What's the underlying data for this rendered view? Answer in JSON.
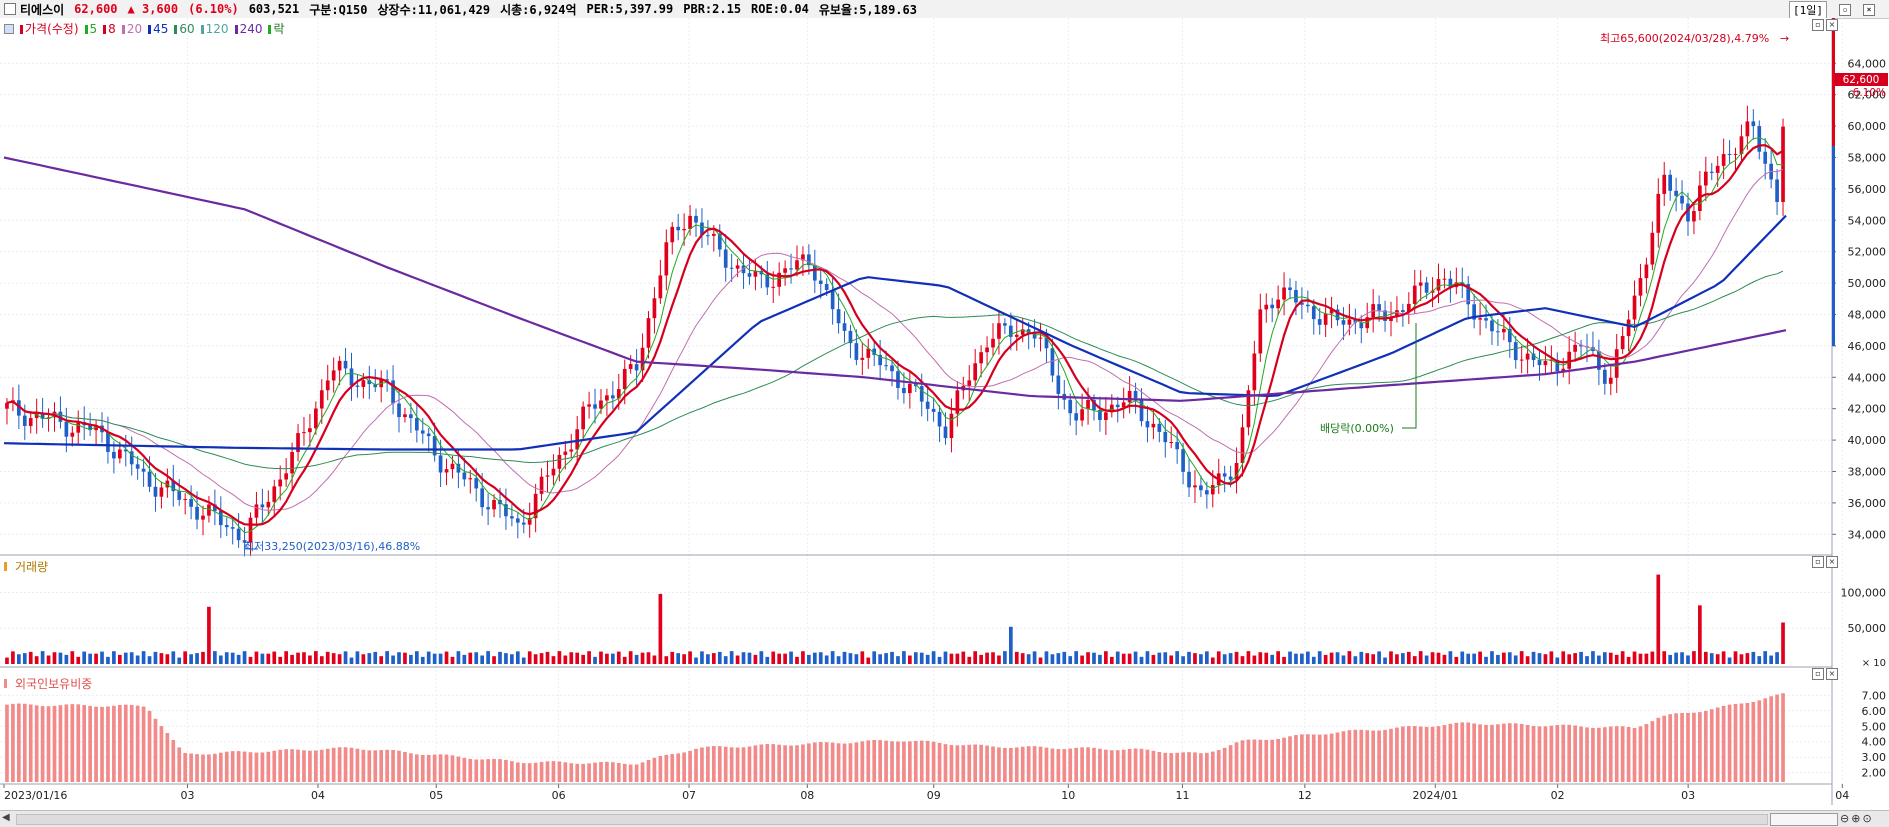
{
  "header": {
    "stock_name": "티에스이",
    "price": "62,600",
    "change": "▲ 3,600",
    "change_pct": "(6.10%)",
    "volume": "603,521",
    "market": "구분:Q150",
    "listed": "상장수:11,061,429",
    "mktcap": "시총:6,924억",
    "per": "PER:5,397.99",
    "pbr": "PBR:2.15",
    "roe": "ROE:0.04",
    "float": "유보율:5,189.63",
    "period": "[1일]"
  },
  "price_panel": {
    "legend": [
      {
        "label": "가격(수정)",
        "color": "#d5001e"
      },
      {
        "label": "5",
        "color": "#22aa22"
      },
      {
        "label": "8",
        "color": "#d5001e"
      },
      {
        "label": "20",
        "color": "#c06fb0"
      },
      {
        "label": "45",
        "color": "#1030b8"
      },
      {
        "label": "60",
        "color": "#2e8b57"
      },
      {
        "label": "120",
        "color": "#4ea8a0"
      },
      {
        "label": "240",
        "color": "#6a2aa0"
      },
      {
        "label": "락",
        "color": "#22aa22"
      }
    ],
    "y_ticks": [
      "64,000",
      "62,000",
      "60,000",
      "58,000",
      "56,000",
      "54,000",
      "52,000",
      "50,000",
      "48,000",
      "46,000",
      "44,000",
      "42,000",
      "40,000",
      "38,000",
      "36,000",
      "34,000"
    ],
    "current_price_tag": "62,600",
    "current_pct_tag": "6.10%",
    "high_annotation": "최고65,600(2024/03/28),4.79%",
    "low_annotation": "최저33,250(2023/03/16),46.88%",
    "dividend_annotation": "배당락(0.00%)"
  },
  "volume_panel": {
    "title": "거래량",
    "y_ticks": [
      "100,000",
      "50,000"
    ],
    "unit": "× 10"
  },
  "foreign_panel": {
    "title": "외국인보유비중",
    "y_ticks": [
      "7.00",
      "6.00",
      "5.00",
      "4.00",
      "3.00",
      "2.00"
    ]
  },
  "x_axis": {
    "labels": [
      "2023/01/16",
      "03",
      "04",
      "05",
      "06",
      "07",
      "08",
      "09",
      "10",
      "11",
      "12",
      "2024/01",
      "02",
      "03",
      "04"
    ]
  },
  "colors": {
    "up": "#e0001b",
    "down": "#1f5fc8",
    "ma5": "#22aa22",
    "ma8": "#d5001e",
    "ma20": "#c06fb0",
    "ma45": "#1030b8",
    "ma60": "#2e8b57",
    "ma120": "#4ea8a0",
    "ma240": "#6a2aa0",
    "foreign_bar": "#f28a8a"
  },
  "chart_data": {
    "type": "candlestick",
    "ylim": [
      33000,
      66500
    ],
    "x_start": "2023-01-16",
    "x_end": "2024-03-28",
    "series": [
      {
        "name": "가격(수정)",
        "type": "line",
        "points": [
          [
            "2023-01-16",
            42000
          ],
          [
            "2023-02-08",
            40500
          ],
          [
            "2023-02-20",
            37500
          ],
          [
            "2023-03-16",
            33900
          ],
          [
            "2023-03-30",
            40000
          ],
          [
            "2023-04-06",
            44500
          ],
          [
            "2023-04-20",
            43200
          ],
          [
            "2023-05-02",
            39000
          ],
          [
            "2023-05-22",
            34500
          ],
          [
            "2023-06-08",
            41800
          ],
          [
            "2023-06-20",
            44500
          ],
          [
            "2023-06-27",
            52000
          ],
          [
            "2023-07-03",
            54500
          ],
          [
            "2023-07-10",
            52000
          ],
          [
            "2023-07-20",
            50000
          ],
          [
            "2023-08-02",
            51500
          ],
          [
            "2023-08-10",
            46500
          ],
          [
            "2023-08-24",
            43800
          ],
          [
            "2023-09-04",
            40800
          ],
          [
            "2023-09-14",
            46500
          ],
          [
            "2023-09-25",
            47200
          ],
          [
            "2023-10-05",
            41500
          ],
          [
            "2023-10-20",
            42500
          ],
          [
            "2023-11-01",
            38500
          ],
          [
            "2023-11-06",
            36200
          ],
          [
            "2023-11-15",
            39000
          ],
          [
            "2023-11-20",
            48000
          ],
          [
            "2023-11-24",
            49500
          ],
          [
            "2023-12-08",
            47500
          ],
          [
            "2023-12-22",
            48000
          ],
          [
            "2024-01-04",
            50500
          ],
          [
            "2024-01-18",
            46500
          ],
          [
            "2024-01-29",
            44500
          ],
          [
            "2024-02-07",
            46000
          ],
          [
            "2024-02-14",
            44000
          ],
          [
            "2024-02-20",
            49000
          ],
          [
            "2024-02-27",
            56500
          ],
          [
            "2024-03-04",
            54500
          ],
          [
            "2024-03-12",
            58000
          ],
          [
            "2024-03-20",
            59800
          ],
          [
            "2024-03-26",
            55500
          ],
          [
            "2024-03-28",
            62600
          ]
        ]
      },
      {
        "name": "45",
        "type": "line",
        "points": [
          [
            "2023-01-16",
            39800
          ],
          [
            "2023-03-16",
            39500
          ],
          [
            "2023-04-20",
            39400
          ],
          [
            "2023-05-22",
            39400
          ],
          [
            "2023-06-20",
            40500
          ],
          [
            "2023-07-20",
            47500
          ],
          [
            "2023-08-15",
            50400
          ],
          [
            "2023-09-04",
            49800
          ],
          [
            "2023-10-05",
            46000
          ],
          [
            "2023-11-01",
            43000
          ],
          [
            "2023-11-24",
            42800
          ],
          [
            "2023-12-22",
            45500
          ],
          [
            "2024-01-10",
            47800
          ],
          [
            "2024-01-29",
            48400
          ],
          [
            "2024-02-20",
            47200
          ],
          [
            "2024-03-12",
            50000
          ],
          [
            "2024-03-28",
            54300
          ]
        ]
      },
      {
        "name": "240",
        "type": "line",
        "points": [
          [
            "2023-01-16",
            58000
          ],
          [
            "2023-03-16",
            54700
          ],
          [
            "2023-04-20",
            51000
          ],
          [
            "2023-05-22",
            47800
          ],
          [
            "2023-06-20",
            45000
          ],
          [
            "2023-07-20",
            44500
          ],
          [
            "2023-08-15",
            44000
          ],
          [
            "2023-09-25",
            42800
          ],
          [
            "2023-11-01",
            42500
          ],
          [
            "2023-12-22",
            43500
          ],
          [
            "2024-01-29",
            44200
          ],
          [
            "2024-02-20",
            45000
          ],
          [
            "2024-03-28",
            47000
          ]
        ]
      }
    ],
    "volume_peaks_x10": [
      [
        "2023-03-07",
        80000
      ],
      [
        "2023-06-26",
        98000
      ],
      [
        "2023-09-20",
        52000
      ],
      [
        "2024-02-26",
        125000
      ],
      [
        "2024-03-07",
        82000
      ],
      [
        "2024-03-28",
        58000
      ]
    ],
    "foreign_ratio": [
      [
        "2023-01-16",
        6.4
      ],
      [
        "2023-02-20",
        6.3
      ],
      [
        "2023-03-01",
        3.2
      ],
      [
        "2023-04-12",
        3.6
      ],
      [
        "2023-05-22",
        2.7
      ],
      [
        "2023-06-20",
        2.6
      ],
      [
        "2023-07-05",
        3.6
      ],
      [
        "2023-08-24",
        4.1
      ],
      [
        "2023-09-14",
        3.7
      ],
      [
        "2023-10-20",
        3.5
      ],
      [
        "2023-11-06",
        3.2
      ],
      [
        "2023-11-15",
        4.0
      ],
      [
        "2023-12-08",
        4.6
      ],
      [
        "2024-01-10",
        5.2
      ],
      [
        "2024-02-20",
        4.9
      ],
      [
        "2024-02-26",
        5.6
      ],
      [
        "2024-03-12",
        6.2
      ],
      [
        "2024-03-28",
        7.1
      ]
    ]
  }
}
